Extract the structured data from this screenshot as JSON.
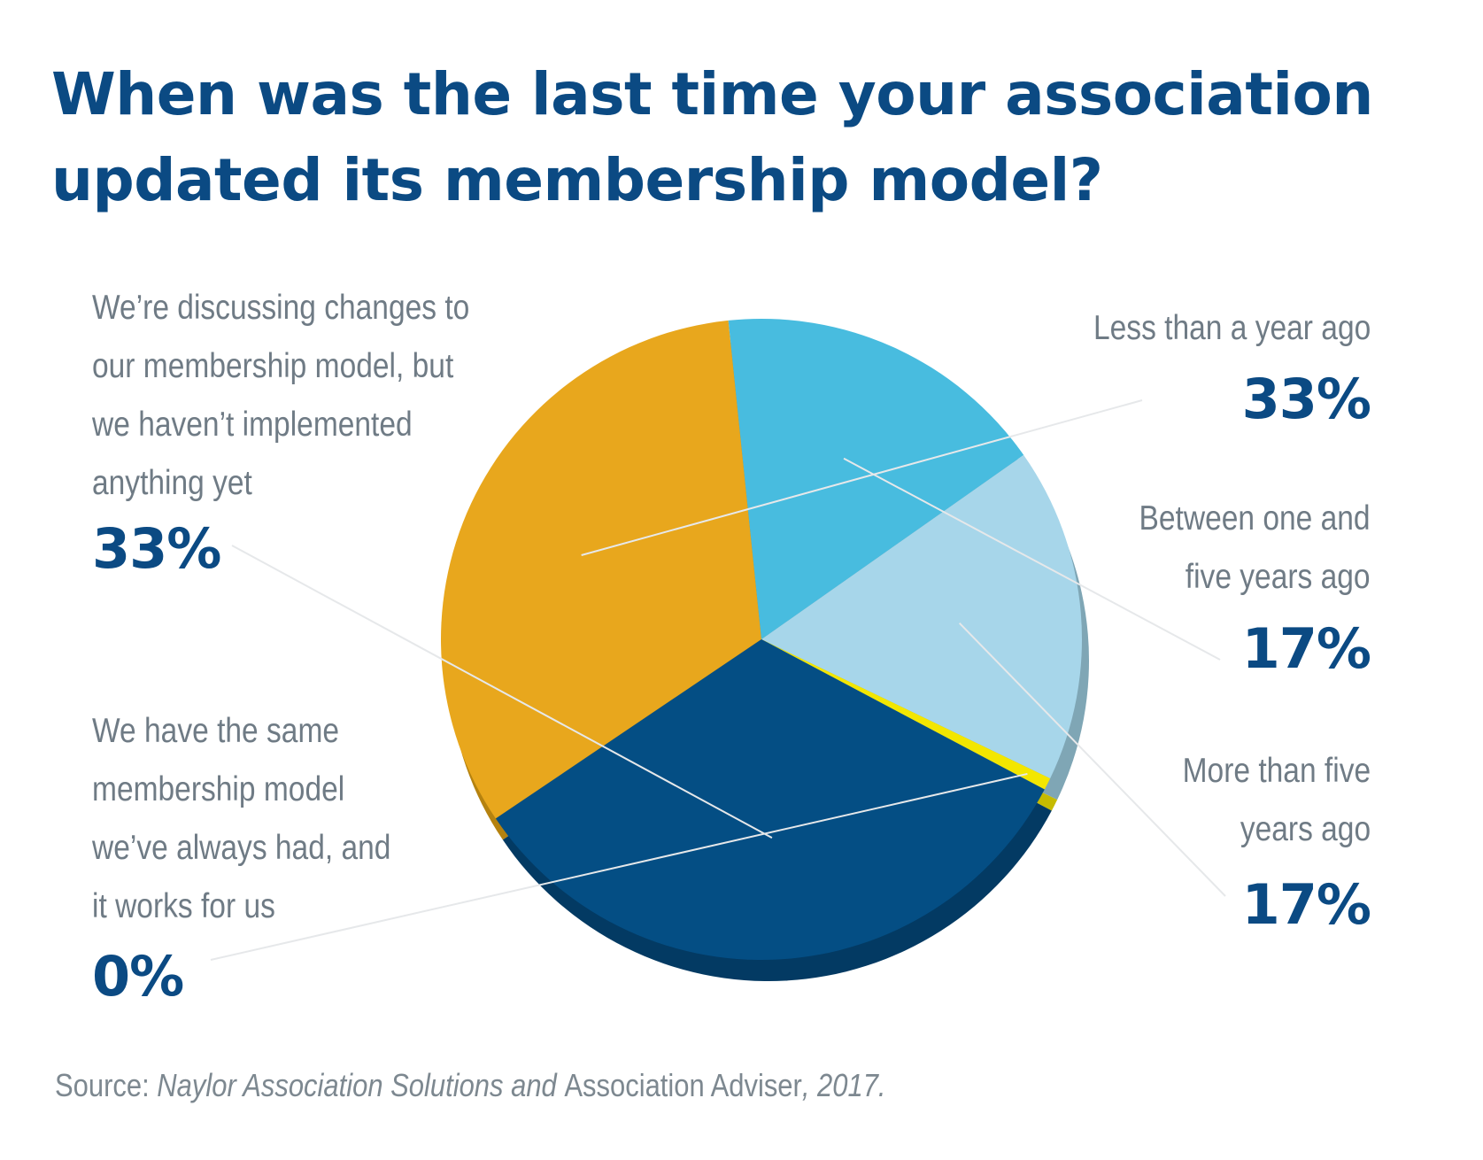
{
  "title": [
    "When was the last time your association",
    "updated its membership model?"
  ],
  "chart_data": {
    "type": "pie",
    "title": "When was the last time your association updated its membership model?",
    "slices": [
      {
        "label": "Less than a year ago",
        "value": 33,
        "value_label": "33%",
        "color": "#e8a71d",
        "side_color": "#b5820f"
      },
      {
        "label": "Between one and five years ago",
        "value": 17,
        "value_label": "17%",
        "color": "#48bcdf",
        "side_color": "#2f8fa8"
      },
      {
        "label": "More than five years ago",
        "value": 17,
        "value_label": "17%",
        "color": "#a7d6ea",
        "side_color": "#7fa6b5"
      },
      {
        "label": "We have the same membership model we’ve always had, and it works for us",
        "value": 0,
        "value_label": "0%",
        "color": "#f3e600",
        "side_color": "#c6bb00"
      },
      {
        "label": "We’re discussing changes to our membership model, but we haven’t implemented anything yet",
        "value": 33,
        "value_label": "33%",
        "color": "#044e84",
        "side_color": "#033a63"
      }
    ]
  },
  "labels": {
    "less_than_year": {
      "lines": [
        "Less than a year ago"
      ],
      "pct": "33%"
    },
    "one_to_five": {
      "lines": [
        "Between one and",
        "five years ago"
      ],
      "pct": "17%"
    },
    "more_than_five": {
      "lines": [
        "More than five",
        "years ago"
      ],
      "pct": "17%"
    },
    "discussing": {
      "lines": [
        "We’re discussing changes to",
        "our membership model, but",
        "we haven’t implemented",
        "anything yet"
      ],
      "pct": "33%"
    },
    "same_model": {
      "lines": [
        "We have the same",
        "membership model",
        "we’ve always had, and",
        "it works for us"
      ],
      "pct": "0%"
    }
  },
  "source": {
    "prefix": "Source: ",
    "part1": "Naylor Association Solutions and ",
    "part2": "Association Adviser",
    "part3": ", 2017."
  },
  "colors": {
    "title": "#0b4a83",
    "label": "#6f7b85",
    "leader": "#e6e8ea"
  }
}
